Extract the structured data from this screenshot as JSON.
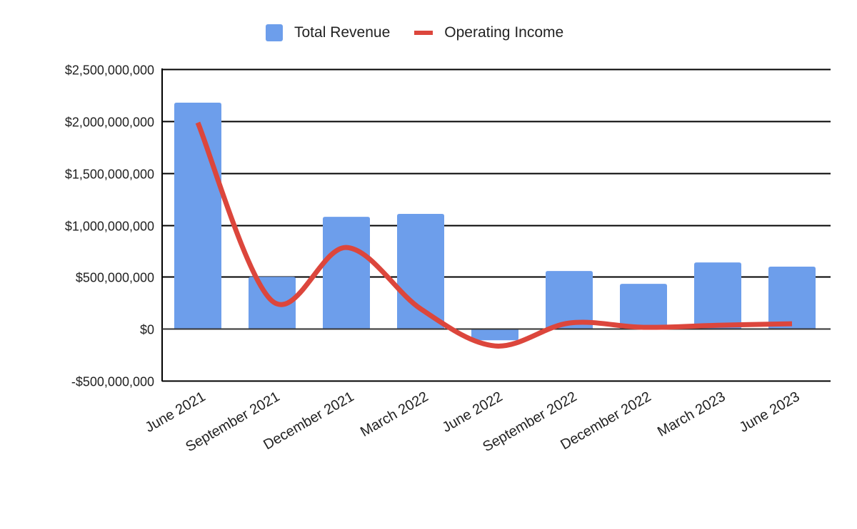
{
  "legend": {
    "revenue_label": "Total Revenue",
    "income_label": "Operating Income"
  },
  "colors": {
    "revenue": "#6d9eeb",
    "income": "#dc463c",
    "grid": "#000000",
    "text": "#222222"
  },
  "chart_data": {
    "type": "bar",
    "title": "",
    "xlabel": "",
    "ylabel": "",
    "ylim": [
      -500000000,
      2500000000
    ],
    "yticks": [
      -500000000,
      0,
      500000000,
      1000000000,
      1500000000,
      2000000000,
      2500000000
    ],
    "ytick_labels": [
      "-$500,000,000",
      "$0",
      "$500,000,000",
      "$1,000,000,000",
      "$1,500,000,000",
      "$2,000,000,000",
      "$2,500,000,000"
    ],
    "grid": true,
    "legend_position": "top",
    "categories": [
      "June 2021",
      "September 2021",
      "December 2021",
      "March 2022",
      "June 2022",
      "September 2022",
      "December 2022",
      "March 2023",
      "June 2023"
    ],
    "series": [
      {
        "name": "Total Revenue",
        "type": "bar",
        "values": [
          2177000000,
          501000000,
          1078000000,
          1106000000,
          -110000000,
          556000000,
          433000000,
          639000000,
          598000000
        ]
      },
      {
        "name": "Operating Income",
        "type": "line",
        "smooth": true,
        "values": [
          1985000000,
          268000000,
          783000000,
          192000000,
          -165000000,
          55000000,
          14000000,
          34000000,
          48000000
        ]
      }
    ]
  }
}
